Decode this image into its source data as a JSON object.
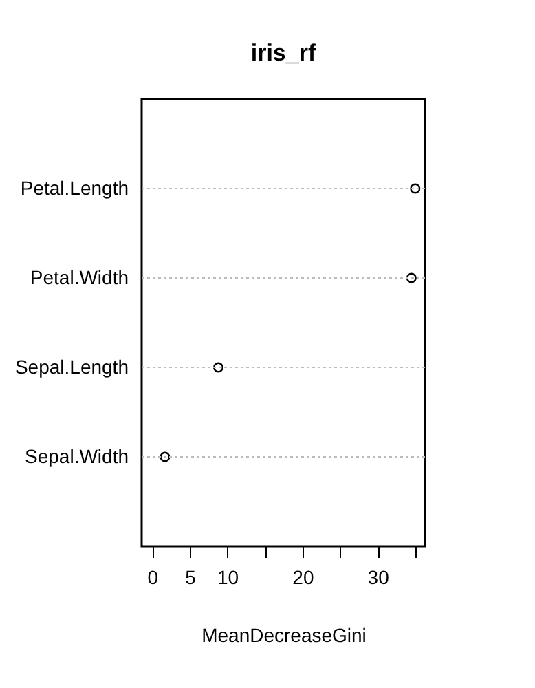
{
  "chart_data": {
    "type": "scatter",
    "title": "iris_rf",
    "xlabel": "MeanDecreaseGini",
    "categories": [
      "Petal.Length",
      "Petal.Width",
      "Sepal.Length",
      "Sepal.Width"
    ],
    "orientation": "horizontal",
    "values": [
      35.0,
      34.5,
      8.8,
      1.7
    ],
    "color": "#000000",
    "marker": "circle",
    "grid": "y",
    "line_style": "dotted",
    "xlim": [
      -1.4,
      36.3
    ],
    "xticks": [
      0,
      5,
      10,
      {
        "value": 15,
        "label": null
      },
      20,
      {
        "value": 25,
        "label": null
      },
      30,
      {
        "value": 35,
        "label": null
      }
    ]
  }
}
